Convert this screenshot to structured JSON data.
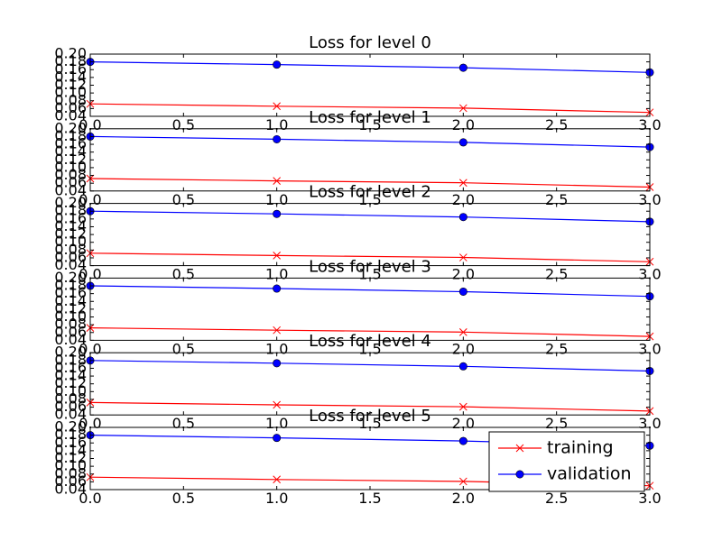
{
  "chart_data": [
    {
      "type": "line",
      "title": "Loss for level 0",
      "x": [
        0,
        1,
        2,
        3
      ],
      "xlim": [
        0,
        3
      ],
      "ylim": [
        0.04,
        0.2
      ],
      "xticks": [
        "0.0",
        "0.5",
        "1.0",
        "1.5",
        "2.0",
        "2.5",
        "3.0"
      ],
      "yticks": [
        "0.04",
        "0.06",
        "0.08",
        "0.10",
        "0.12",
        "0.14",
        "0.16",
        "0.18",
        "0.20"
      ],
      "series": [
        {
          "name": "training",
          "color": "#ff0000",
          "marker": "x",
          "values": [
            0.072,
            0.066,
            0.061,
            0.05
          ]
        },
        {
          "name": "validation",
          "color": "#0000ff",
          "marker": "o",
          "values": [
            0.18,
            0.173,
            0.165,
            0.153
          ]
        }
      ]
    },
    {
      "type": "line",
      "title": "Loss for level 1",
      "x": [
        0,
        1,
        2,
        3
      ],
      "xlim": [
        0,
        3
      ],
      "ylim": [
        0.04,
        0.2
      ],
      "xticks": [
        "0.0",
        "0.5",
        "1.0",
        "1.5",
        "2.0",
        "2.5",
        "3.0"
      ],
      "yticks": [
        "0.04",
        "0.06",
        "0.08",
        "0.10",
        "0.12",
        "0.14",
        "0.16",
        "0.18",
        "0.20"
      ],
      "series": [
        {
          "name": "training",
          "color": "#ff0000",
          "marker": "x",
          "values": [
            0.072,
            0.066,
            0.061,
            0.05
          ]
        },
        {
          "name": "validation",
          "color": "#0000ff",
          "marker": "o",
          "values": [
            0.18,
            0.173,
            0.165,
            0.153
          ]
        }
      ]
    },
    {
      "type": "line",
      "title": "Loss for level 2",
      "x": [
        0,
        1,
        2,
        3
      ],
      "xlim": [
        0,
        3
      ],
      "ylim": [
        0.04,
        0.2
      ],
      "xticks": [
        "0.0",
        "0.5",
        "1.0",
        "1.5",
        "2.0",
        "2.5",
        "3.0"
      ],
      "yticks": [
        "0.04",
        "0.06",
        "0.08",
        "0.10",
        "0.12",
        "0.14",
        "0.16",
        "0.18",
        "0.20"
      ],
      "series": [
        {
          "name": "training",
          "color": "#ff0000",
          "marker": "x",
          "values": [
            0.072,
            0.066,
            0.061,
            0.05
          ]
        },
        {
          "name": "validation",
          "color": "#0000ff",
          "marker": "o",
          "values": [
            0.18,
            0.173,
            0.165,
            0.153
          ]
        }
      ]
    },
    {
      "type": "line",
      "title": "Loss for level 3",
      "x": [
        0,
        1,
        2,
        3
      ],
      "xlim": [
        0,
        3
      ],
      "ylim": [
        0.04,
        0.2
      ],
      "xticks": [
        "0.0",
        "0.5",
        "1.0",
        "1.5",
        "2.0",
        "2.5",
        "3.0"
      ],
      "yticks": [
        "0.04",
        "0.06",
        "0.08",
        "0.10",
        "0.12",
        "0.14",
        "0.16",
        "0.18",
        "0.20"
      ],
      "series": [
        {
          "name": "training",
          "color": "#ff0000",
          "marker": "x",
          "values": [
            0.072,
            0.066,
            0.061,
            0.05
          ]
        },
        {
          "name": "validation",
          "color": "#0000ff",
          "marker": "o",
          "values": [
            0.18,
            0.173,
            0.165,
            0.153
          ]
        }
      ]
    },
    {
      "type": "line",
      "title": "Loss for level 4",
      "x": [
        0,
        1,
        2,
        3
      ],
      "xlim": [
        0,
        3
      ],
      "ylim": [
        0.04,
        0.2
      ],
      "xticks": [
        "0.0",
        "0.5",
        "1.0",
        "1.5",
        "2.0",
        "2.5",
        "3.0"
      ],
      "yticks": [
        "0.04",
        "0.06",
        "0.08",
        "0.10",
        "0.12",
        "0.14",
        "0.16",
        "0.18",
        "0.20"
      ],
      "series": [
        {
          "name": "training",
          "color": "#ff0000",
          "marker": "x",
          "values": [
            0.072,
            0.066,
            0.061,
            0.05
          ]
        },
        {
          "name": "validation",
          "color": "#0000ff",
          "marker": "o",
          "values": [
            0.18,
            0.173,
            0.165,
            0.153
          ]
        }
      ]
    },
    {
      "type": "line",
      "title": "Loss for level 5",
      "x": [
        0,
        1,
        2,
        3
      ],
      "xlim": [
        0,
        3
      ],
      "ylim": [
        0.04,
        0.2
      ],
      "xticks": [
        "0.0",
        "0.5",
        "1.0",
        "1.5",
        "2.0",
        "2.5",
        "3.0"
      ],
      "yticks": [
        "0.04",
        "0.06",
        "0.08",
        "0.10",
        "0.12",
        "0.14",
        "0.16",
        "0.18",
        "0.20"
      ],
      "series": [
        {
          "name": "training",
          "color": "#ff0000",
          "marker": "x",
          "values": [
            0.072,
            0.066,
            0.061,
            0.05
          ]
        },
        {
          "name": "validation",
          "color": "#0000ff",
          "marker": "o",
          "values": [
            0.18,
            0.173,
            0.165,
            0.153
          ]
        }
      ],
      "legend": {
        "position": "lower-right",
        "entries": [
          "training",
          "validation"
        ]
      }
    }
  ]
}
